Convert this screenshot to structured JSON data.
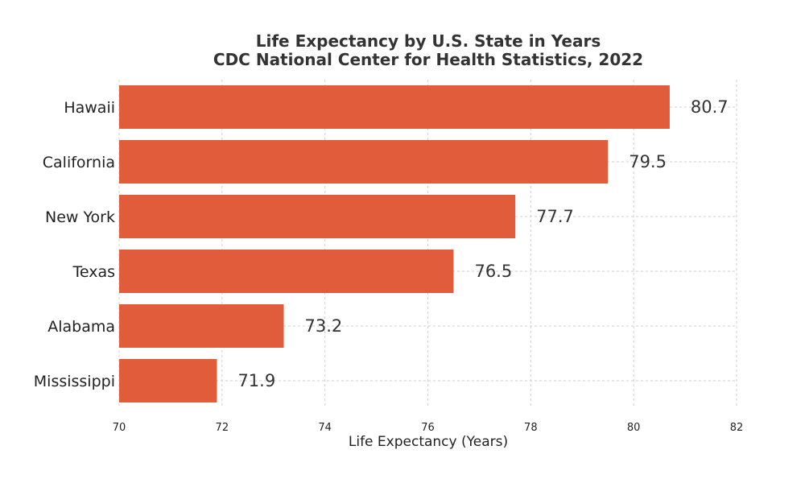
{
  "chart_data": {
    "type": "bar",
    "orientation": "horizontal",
    "title": "Life Expectancy by U.S. State in Years",
    "subtitle": "CDC National Center for Health Statistics, 2022",
    "categories": [
      "Hawaii",
      "California",
      "New York",
      "Texas",
      "Alabama",
      "Mississippi"
    ],
    "values": [
      80.7,
      79.5,
      77.7,
      76.5,
      73.2,
      71.9
    ],
    "value_labels": [
      "80.7",
      "79.5",
      "77.7",
      "76.5",
      "73.2",
      "71.9"
    ],
    "xlabel": "Life Expectancy (Years)",
    "ylabel": "",
    "xlim": [
      70,
      82
    ],
    "xticks": [
      70,
      72,
      74,
      76,
      78,
      80,
      82
    ],
    "xtick_labels": [
      "70",
      "72",
      "74",
      "76",
      "78",
      "80",
      "82"
    ],
    "grid": true,
    "bar_color": "#e05c3a"
  }
}
